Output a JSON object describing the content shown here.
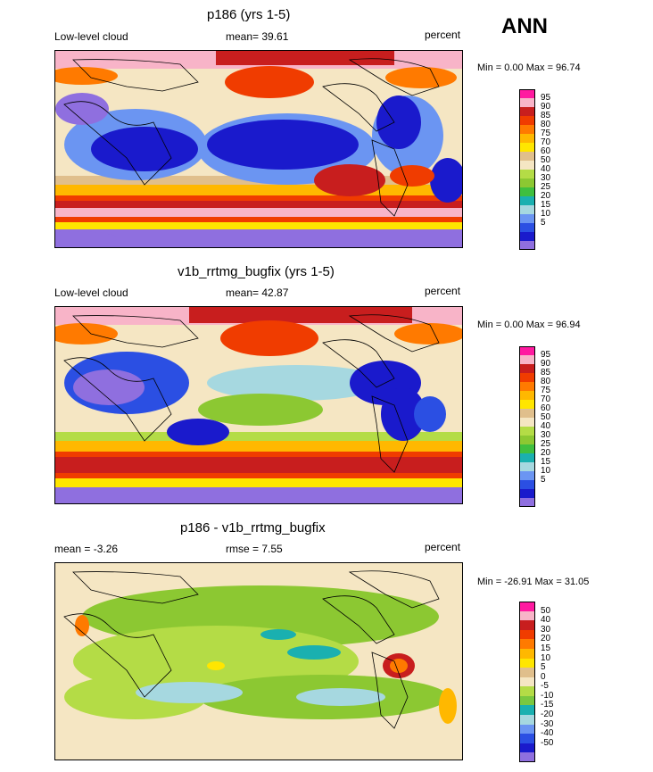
{
  "season": "ANN",
  "palettes": {
    "abs": [
      "#8f6fdf",
      "#1a1acc",
      "#2b4fe3",
      "#6b95f2",
      "#a6d8e0",
      "#1ab0b0",
      "#3fbf3f",
      "#8cc832",
      "#b4dc46",
      "#f5e6c3",
      "#e0bf8c",
      "#ffe600",
      "#ffb800",
      "#ff7a00",
      "#f03c00",
      "#c81e1e",
      "#f8b4c8",
      "#ff1aa0"
    ],
    "diff": [
      "#8f6fdf",
      "#1a1acc",
      "#2b4fe3",
      "#6b95f2",
      "#a6d8e0",
      "#1ab0b0",
      "#7ac840",
      "#b4dc46",
      "#f5e6c3",
      "#e0bf8c",
      "#ffe600",
      "#ffb800",
      "#ff7a00",
      "#f03c00",
      "#c81e1e",
      "#f8b4c8",
      "#ff1aa0"
    ]
  },
  "panels": [
    {
      "title": "p186 (yrs 1-5)",
      "left_label": "Low-level cloud",
      "center_label": "mean=  39.61",
      "right_label": "percent",
      "minmax": "Min =   0.00 Max =  96.74",
      "levels": [
        "95",
        "90",
        "85",
        "80",
        "75",
        "70",
        "60",
        "50",
        "40",
        "30",
        "25",
        "20",
        "15",
        "10",
        "5"
      ],
      "palette": "abs"
    },
    {
      "title": "v1b_rrtmg_bugfix (yrs 1-5)",
      "left_label": "Low-level cloud",
      "center_label": "mean=  42.87",
      "right_label": "percent",
      "minmax": "Min =   0.00 Max =  96.94",
      "levels": [
        "95",
        "90",
        "85",
        "80",
        "75",
        "70",
        "60",
        "50",
        "40",
        "30",
        "25",
        "20",
        "15",
        "10",
        "5"
      ],
      "palette": "abs"
    },
    {
      "title": "p186 - v1b_rrtmg_bugfix",
      "left_label": "mean =  -3.26",
      "center_label": "rmse =   7.55",
      "right_label": "percent",
      "minmax": "Min = -26.91 Max =  31.05",
      "levels": [
        "50",
        "40",
        "30",
        "20",
        "15",
        "10",
        "5",
        "0",
        "-5",
        "-10",
        "-15",
        "-20",
        "-30",
        "-40",
        "-50"
      ],
      "palette": "diff"
    }
  ]
}
